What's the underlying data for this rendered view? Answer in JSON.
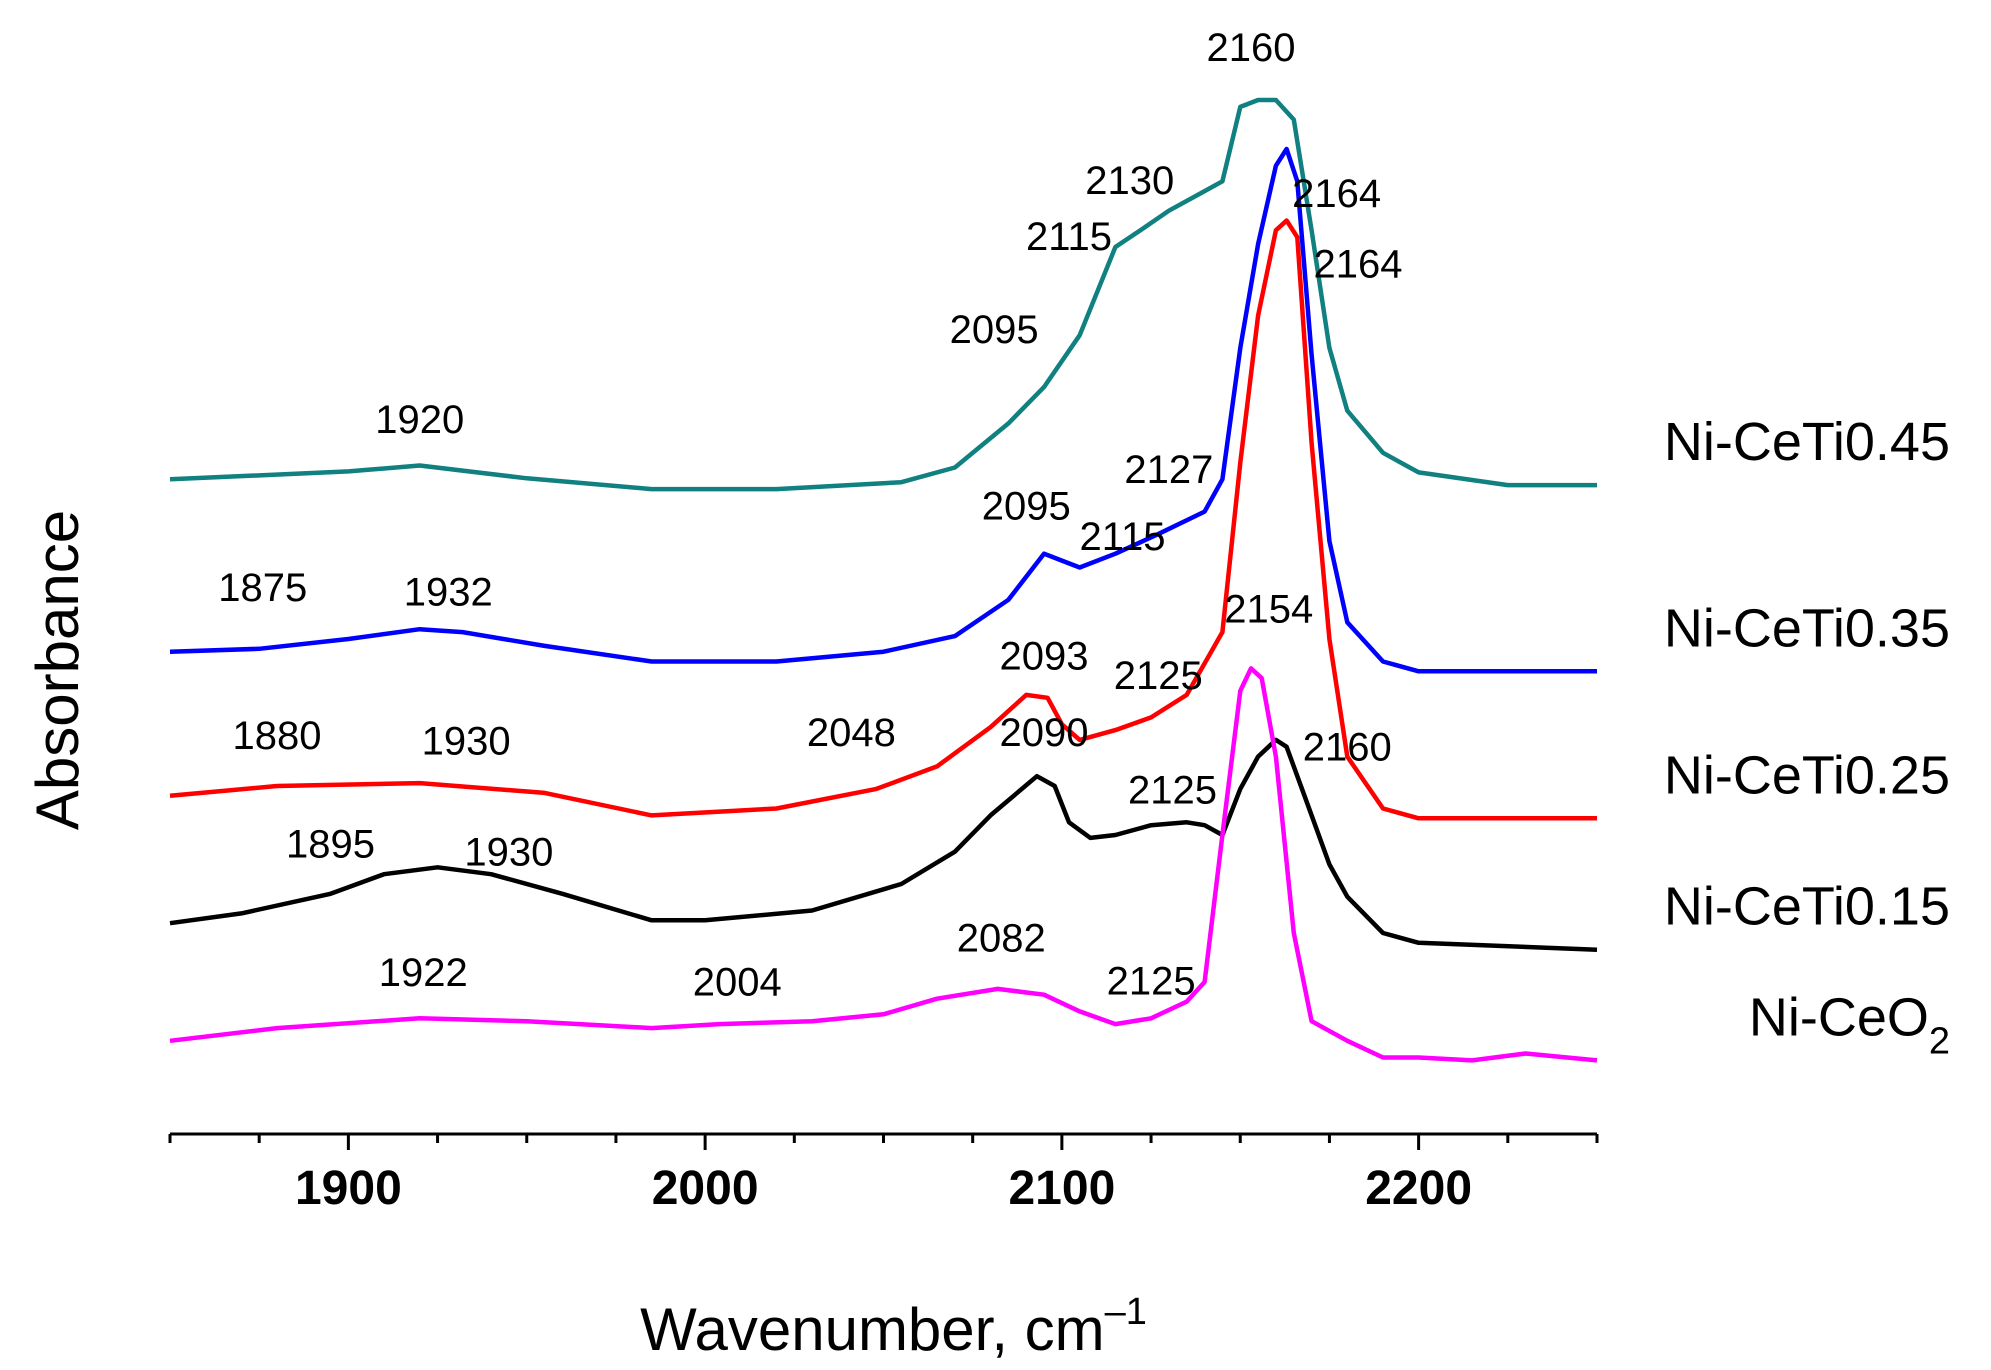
{
  "chart_data": {
    "type": "line",
    "xlabel": "Wavenumber, cm",
    "xlabel_sup": "–1",
    "ylabel": "Absorbance",
    "xlim": [
      1850,
      2250
    ],
    "ylim": [
      0,
      1
    ],
    "yticks_shown": false,
    "xticks": [
      1900,
      2000,
      2100,
      2200
    ],
    "xticks_minor_step": 25,
    "series": [
      {
        "name": "Ni-CeTi0.45",
        "label_main": "Ni-CeTi0.45",
        "label_sub": "",
        "color": "#108080",
        "points": [
          [
            1850,
            0.613
          ],
          [
            1900,
            0.621
          ],
          [
            1920,
            0.627
          ],
          [
            1950,
            0.614
          ],
          [
            1985,
            0.603
          ],
          [
            2020,
            0.603
          ],
          [
            2055,
            0.61
          ],
          [
            2070,
            0.625
          ],
          [
            2085,
            0.67
          ],
          [
            2095,
            0.707
          ],
          [
            2105,
            0.76
          ],
          [
            2115,
            0.85
          ],
          [
            2122,
            0.867
          ],
          [
            2130,
            0.887
          ],
          [
            2140,
            0.907
          ],
          [
            2145,
            0.917
          ],
          [
            2150,
            0.993
          ],
          [
            2155,
            1.0
          ],
          [
            2160,
            1.0
          ],
          [
            2165,
            0.98
          ],
          [
            2170,
            0.867
          ],
          [
            2175,
            0.747
          ],
          [
            2180,
            0.683
          ],
          [
            2190,
            0.64
          ],
          [
            2200,
            0.62
          ],
          [
            2225,
            0.607
          ],
          [
            2250,
            0.607
          ]
        ],
        "annotations": [
          {
            "text": "1920",
            "x": 1920,
            "y": 0.66
          },
          {
            "text": "2095",
            "x": 2081,
            "y": 0.752
          },
          {
            "text": "2115",
            "x": 2102,
            "y": 0.847
          },
          {
            "text": "2130",
            "x": 2119,
            "y": 0.904
          },
          {
            "text": "2160",
            "x": 2153,
            "y": 1.04
          },
          {
            "text": "2164",
            "x": 2177,
            "y": 0.891
          }
        ]
      },
      {
        "name": "Ni-CeTi0.35",
        "label_main": "Ni-CeTi0.35",
        "label_sub": "",
        "color": "#0000ff",
        "points": [
          [
            1850,
            0.437
          ],
          [
            1875,
            0.44
          ],
          [
            1900,
            0.45
          ],
          [
            1920,
            0.46
          ],
          [
            1932,
            0.457
          ],
          [
            1955,
            0.443
          ],
          [
            1985,
            0.427
          ],
          [
            2020,
            0.427
          ],
          [
            2050,
            0.437
          ],
          [
            2070,
            0.453
          ],
          [
            2085,
            0.49
          ],
          [
            2095,
            0.537
          ],
          [
            2100,
            0.53
          ],
          [
            2105,
            0.523
          ],
          [
            2115,
            0.537
          ],
          [
            2127,
            0.557
          ],
          [
            2140,
            0.58
          ],
          [
            2145,
            0.613
          ],
          [
            2150,
            0.747
          ],
          [
            2155,
            0.853
          ],
          [
            2160,
            0.933
          ],
          [
            2163,
            0.95
          ],
          [
            2166,
            0.917
          ],
          [
            2170,
            0.74
          ],
          [
            2175,
            0.55
          ],
          [
            2180,
            0.467
          ],
          [
            2190,
            0.427
          ],
          [
            2200,
            0.417
          ],
          [
            2250,
            0.417
          ]
        ],
        "annotations": [
          {
            "text": "1875",
            "x": 1876,
            "y": 0.489
          },
          {
            "text": "1932",
            "x": 1928,
            "y": 0.484
          },
          {
            "text": "2095",
            "x": 2090,
            "y": 0.572
          },
          {
            "text": "2115",
            "x": 2117,
            "y": 0.541
          },
          {
            "text": "2127",
            "x": 2130,
            "y": 0.609
          },
          {
            "text": "2164",
            "x": 2183,
            "y": 0.819
          }
        ]
      },
      {
        "name": "Ni-CeTi0.25",
        "label_main": "Ni-CeTi0.25",
        "label_sub": "",
        "color": "#ff0000",
        "points": [
          [
            1850,
            0.29
          ],
          [
            1880,
            0.3
          ],
          [
            1920,
            0.303
          ],
          [
            1955,
            0.293
          ],
          [
            1985,
            0.27
          ],
          [
            2020,
            0.277
          ],
          [
            2048,
            0.297
          ],
          [
            2065,
            0.32
          ],
          [
            2080,
            0.36
          ],
          [
            2090,
            0.393
          ],
          [
            2096,
            0.39
          ],
          [
            2100,
            0.363
          ],
          [
            2105,
            0.347
          ],
          [
            2115,
            0.357
          ],
          [
            2125,
            0.37
          ],
          [
            2135,
            0.393
          ],
          [
            2145,
            0.457
          ],
          [
            2150,
            0.63
          ],
          [
            2155,
            0.78
          ],
          [
            2160,
            0.867
          ],
          [
            2163,
            0.877
          ],
          [
            2166,
            0.86
          ],
          [
            2170,
            0.65
          ],
          [
            2175,
            0.45
          ],
          [
            2180,
            0.33
          ],
          [
            2190,
            0.277
          ],
          [
            2200,
            0.267
          ],
          [
            2250,
            0.267
          ]
        ],
        "annotations": [
          {
            "text": "1880",
            "x": 1880,
            "y": 0.338
          },
          {
            "text": "1930",
            "x": 1933,
            "y": 0.332
          },
          {
            "text": "2048",
            "x": 2041,
            "y": 0.341
          },
          {
            "text": "2093",
            "x": 2095,
            "y": 0.419
          },
          {
            "text": "2125",
            "x": 2127,
            "y": 0.399
          },
          {
            "text": "2154",
            "x": 2158,
            "y": 0.467
          }
        ]
      },
      {
        "name": "Ni-CeTi0.15",
        "label_main": "Ni-CeTi0.15",
        "label_sub": "",
        "color": "#000000",
        "points": [
          [
            1850,
            0.16
          ],
          [
            1870,
            0.17
          ],
          [
            1895,
            0.19
          ],
          [
            1910,
            0.21
          ],
          [
            1925,
            0.217
          ],
          [
            1940,
            0.21
          ],
          [
            1960,
            0.19
          ],
          [
            1985,
            0.163
          ],
          [
            2000,
            0.163
          ],
          [
            2030,
            0.173
          ],
          [
            2055,
            0.2
          ],
          [
            2070,
            0.233
          ],
          [
            2080,
            0.27
          ],
          [
            2093,
            0.31
          ],
          [
            2098,
            0.3
          ],
          [
            2102,
            0.263
          ],
          [
            2108,
            0.247
          ],
          [
            2115,
            0.25
          ],
          [
            2125,
            0.26
          ],
          [
            2135,
            0.263
          ],
          [
            2140,
            0.26
          ],
          [
            2145,
            0.25
          ],
          [
            2150,
            0.297
          ],
          [
            2155,
            0.33
          ],
          [
            2160,
            0.347
          ],
          [
            2163,
            0.34
          ],
          [
            2168,
            0.29
          ],
          [
            2175,
            0.22
          ],
          [
            2180,
            0.187
          ],
          [
            2190,
            0.15
          ],
          [
            2200,
            0.14
          ],
          [
            2250,
            0.133
          ]
        ],
        "annotations": [
          {
            "text": "1895",
            "x": 1895,
            "y": 0.227
          },
          {
            "text": "1930",
            "x": 1945,
            "y": 0.219
          },
          {
            "text": "2090",
            "x": 2095,
            "y": 0.341
          },
          {
            "text": "2125",
            "x": 2131,
            "y": 0.282
          },
          {
            "text": "2160",
            "x": 2180,
            "y": 0.326
          }
        ]
      },
      {
        "name": "Ni-CeO2",
        "label_main": "Ni-CeO",
        "label_sub": "2",
        "color": "#ff00ff",
        "points": [
          [
            1850,
            0.04
          ],
          [
            1880,
            0.053
          ],
          [
            1920,
            0.063
          ],
          [
            1950,
            0.06
          ],
          [
            1985,
            0.053
          ],
          [
            2004,
            0.057
          ],
          [
            2030,
            0.06
          ],
          [
            2050,
            0.067
          ],
          [
            2065,
            0.083
          ],
          [
            2082,
            0.093
          ],
          [
            2095,
            0.087
          ],
          [
            2105,
            0.07
          ],
          [
            2115,
            0.057
          ],
          [
            2125,
            0.063
          ],
          [
            2135,
            0.08
          ],
          [
            2140,
            0.1
          ],
          [
            2145,
            0.25
          ],
          [
            2150,
            0.397
          ],
          [
            2153,
            0.42
          ],
          [
            2156,
            0.41
          ],
          [
            2160,
            0.33
          ],
          [
            2165,
            0.15
          ],
          [
            2170,
            0.06
          ],
          [
            2180,
            0.04
          ],
          [
            2190,
            0.023
          ],
          [
            2200,
            0.023
          ],
          [
            2215,
            0.02
          ],
          [
            2230,
            0.027
          ],
          [
            2250,
            0.02
          ]
        ],
        "annotations": [
          {
            "text": "1922",
            "x": 1921,
            "y": 0.096
          },
          {
            "text": "2004",
            "x": 2009,
            "y": 0.086
          },
          {
            "text": "2082",
            "x": 2083,
            "y": 0.131
          },
          {
            "text": "2125",
            "x": 2125,
            "y": 0.087
          }
        ]
      }
    ]
  }
}
